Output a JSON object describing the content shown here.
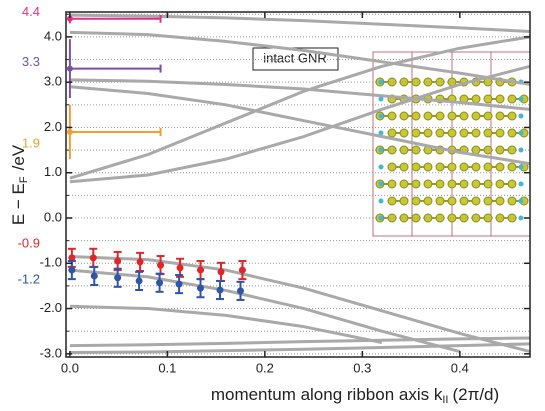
{
  "chart_data": {
    "type": "line",
    "annotation": "intact GNR",
    "x_label": {
      "text": "momentum along ribbon axis k",
      "sub": "II",
      "after": "(2π/d)"
    },
    "y_label": {
      "text": "E − E",
      "sub": "F",
      "after": "/eV"
    },
    "xlim": [
      -0.004,
      0.472
    ],
    "ylim": [
      -3.07,
      4.55
    ],
    "xticks": [
      {
        "value": 0,
        "label": "0.0"
      },
      {
        "value": 0.1,
        "label": "0.1"
      },
      {
        "value": 0.2,
        "label": "0.2"
      },
      {
        "value": 0.3,
        "label": "0.3"
      },
      {
        "value": 0.4,
        "label": "0.4"
      }
    ],
    "yticks": [
      {
        "value": -3,
        "label": "-3.0"
      },
      {
        "value": -2,
        "label": "-2.0"
      },
      {
        "value": -1,
        "label": "-1.0"
      },
      {
        "value": 0,
        "label": "0.0"
      },
      {
        "value": 1,
        "label": "1.0"
      },
      {
        "value": 2,
        "label": "2.0"
      },
      {
        "value": 3,
        "label": "3.0"
      },
      {
        "value": 4,
        "label": "4.0"
      }
    ],
    "yminor": [
      -2.5,
      -1.5,
      -0.5,
      0.5,
      1.5,
      2.5,
      3.5,
      4.5
    ],
    "grid": true,
    "x": [
      0,
      0.08,
      0.16,
      0.24,
      0.32,
      0.4,
      0.472
    ],
    "series": [
      {
        "color": "#a9a9a9",
        "values": [
          -0.85,
          -0.92,
          -1.15,
          -1.55,
          -2.05,
          -2.55,
          -2.95
        ]
      },
      {
        "color": "#a9a9a9",
        "values": [
          -1.15,
          -1.3,
          -1.6,
          -2.0,
          -2.5,
          -2.95,
          null
        ]
      },
      {
        "color": "#a9a9a9",
        "values": [
          -1.95,
          -2.0,
          -2.15,
          -2.4,
          -2.75,
          null,
          null
        ]
      },
      {
        "color": "#a9a9a9",
        "values": [
          -2.82,
          -2.8,
          -2.77,
          -2.73,
          -2.7,
          -2.67,
          -2.65
        ]
      },
      {
        "color": "#a9a9a9",
        "values": [
          -2.97,
          -2.96,
          -2.93,
          -2.9,
          -2.86,
          -2.82,
          -2.78
        ]
      },
      {
        "color": "#a9a9a9",
        "values": [
          0.8,
          0.95,
          1.3,
          1.8,
          2.4,
          2.95,
          3.35
        ]
      },
      {
        "color": "#a9a9a9",
        "values": [
          0.88,
          1.4,
          2.1,
          2.8,
          3.35,
          3.75,
          4.0
        ]
      },
      {
        "color": "#a9a9a9",
        "values": [
          2.9,
          2.75,
          2.5,
          2.15,
          1.8,
          1.45,
          1.2
        ]
      },
      {
        "color": "#a9a9a9",
        "values": [
          3.05,
          3.02,
          2.95,
          2.85,
          2.7,
          2.55,
          2.4
        ]
      },
      {
        "color": "#a9a9a9",
        "values": [
          4.1,
          4.05,
          3.9,
          3.7,
          3.45,
          3.2,
          2.95
        ]
      },
      {
        "color": "#a9a9a9",
        "values": [
          4.48,
          4.46,
          4.42,
          4.36,
          4.28,
          4.2,
          4.12
        ]
      }
    ],
    "measured": [
      {
        "label": "-0.9",
        "color": "#e0262b",
        "x": [
          0.002,
          0.024,
          0.049,
          0.072,
          0.093,
          0.113,
          0.134,
          0.155,
          0.177
        ],
        "values": [
          -0.88,
          -0.88,
          -0.95,
          -0.97,
          -1.04,
          -1.1,
          -1.15,
          -1.19,
          -1.15
        ],
        "errors": [
          0.2,
          0.2,
          0.2,
          0.2,
          0.2,
          0.2,
          0.2,
          0.2,
          0.2
        ]
      },
      {
        "label": "-1.2",
        "color": "#2e55a8",
        "x": [
          0.002,
          0.025,
          0.049,
          0.071,
          0.092,
          0.112,
          0.134,
          0.154,
          0.175
        ],
        "values": [
          -1.15,
          -1.28,
          -1.32,
          -1.39,
          -1.43,
          -1.46,
          -1.55,
          -1.59,
          -1.61
        ],
        "errors": [
          0.2,
          0.2,
          0.2,
          0.2,
          0.2,
          0.2,
          0.2,
          0.2,
          0.2
        ]
      }
    ],
    "levels": [
      {
        "value": 4.4,
        "color": "#e0308a",
        "xerr": 0.093,
        "yerr": 0.1
      },
      {
        "value": 3.3,
        "color": "#7a4fa6",
        "xerr": 0.093,
        "yerr": 0.65
      },
      {
        "value": 1.9,
        "color": "#f0a030",
        "xerr": 0.093,
        "yerr": 0.6
      }
    ]
  }
}
